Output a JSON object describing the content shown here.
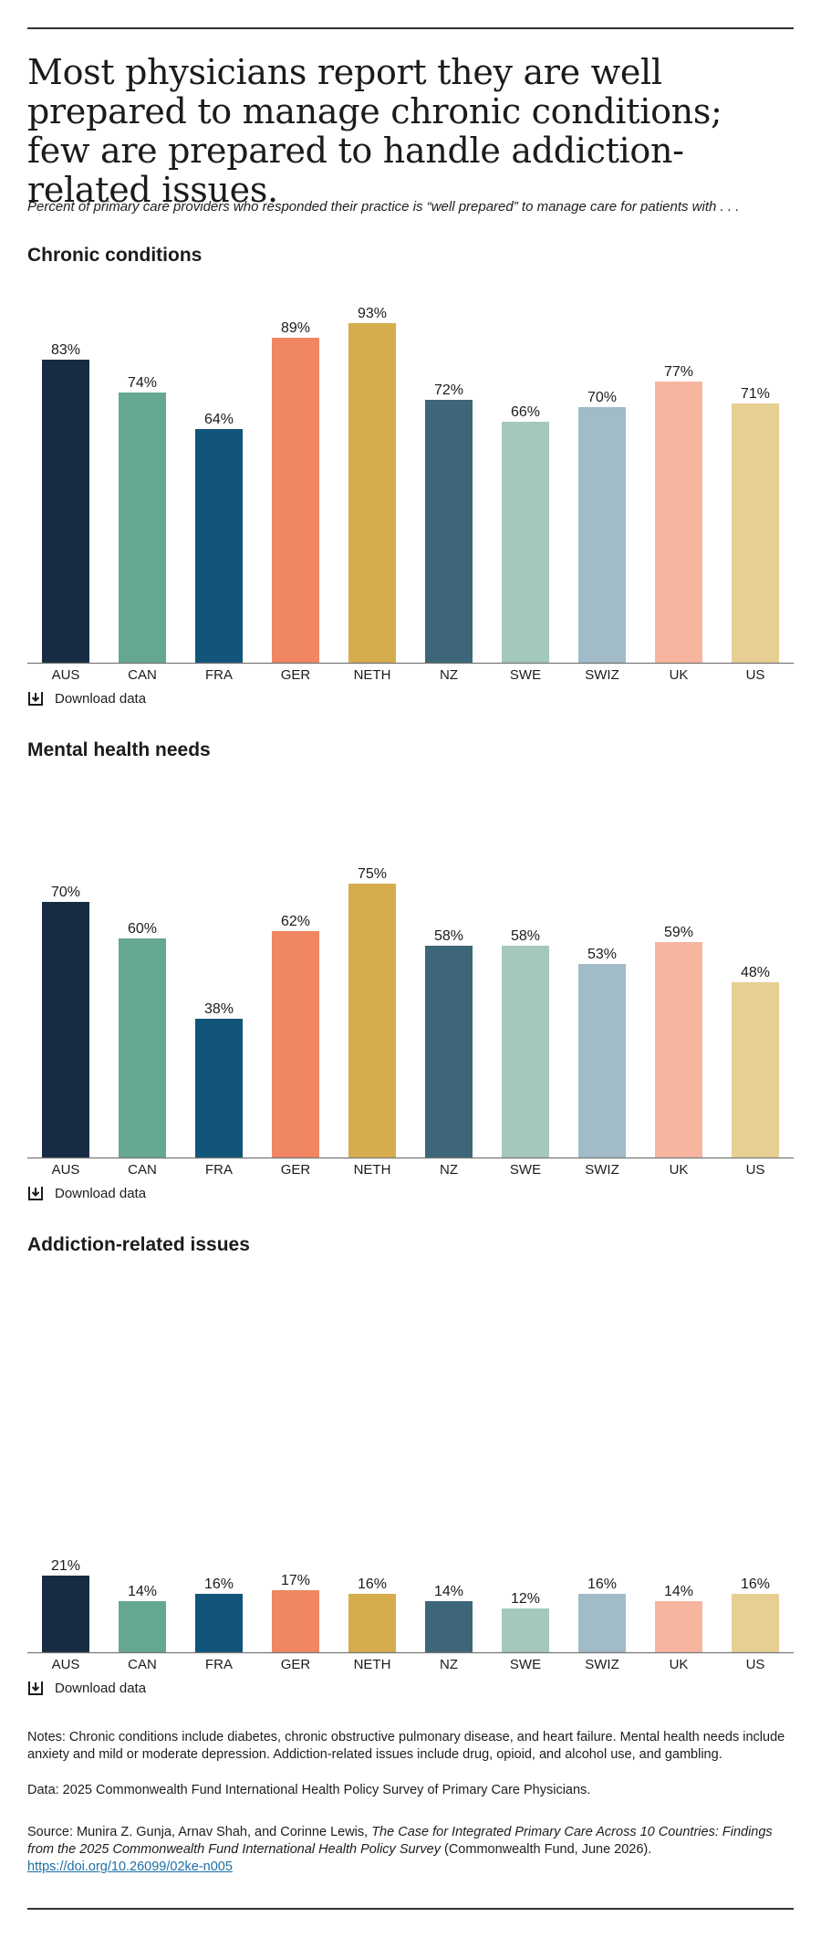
{
  "headline": "Most physicians report they are well prepared to manage chronic conditions; few are prepared to handle addiction-related issues.",
  "subtitle": "Percent of primary care providers who responded their practice is “well prepared” to manage care for patients with . . .",
  "colors": [
    "#172c42",
    "#66a792",
    "#11557a",
    "#f08762",
    "#d6ad4d",
    "#3d6679",
    "#a4c9bc",
    "#a1bbc8",
    "#f7b5a0",
    "#e7cf93"
  ],
  "download_label": "Download data",
  "chart_data": [
    {
      "type": "bar",
      "title": "Chronic conditions",
      "categories": [
        "AUS",
        "CAN",
        "FRA",
        "GER",
        "NETH",
        "NZ",
        "SWE",
        "SWIZ",
        "UK",
        "US"
      ],
      "values": [
        83,
        74,
        64,
        89,
        93,
        72,
        66,
        70,
        77,
        71
      ],
      "value_labels": [
        "83%",
        "74%",
        "64%",
        "89%",
        "93%",
        "72%",
        "66%",
        "70%",
        "77%",
        "71%"
      ],
      "ylim": [
        0,
        100
      ],
      "grid": false,
      "legend": "none"
    },
    {
      "type": "bar",
      "title": "Mental health needs",
      "categories": [
        "AUS",
        "CAN",
        "FRA",
        "GER",
        "NETH",
        "NZ",
        "SWE",
        "SWIZ",
        "UK",
        "US"
      ],
      "values": [
        70,
        60,
        38,
        62,
        75,
        58,
        58,
        53,
        59,
        48
      ],
      "value_labels": [
        "70%",
        "60%",
        "38%",
        "62%",
        "75%",
        "58%",
        "58%",
        "53%",
        "59%",
        "48%"
      ],
      "ylim": [
        0,
        100
      ],
      "grid": false,
      "legend": "none"
    },
    {
      "type": "bar",
      "title": "Addiction-related issues",
      "categories": [
        "AUS",
        "CAN",
        "FRA",
        "GER",
        "NETH",
        "NZ",
        "SWE",
        "SWIZ",
        "UK",
        "US"
      ],
      "values": [
        21,
        14,
        16,
        17,
        16,
        14,
        12,
        16,
        14,
        16
      ],
      "value_labels": [
        "21%",
        "14%",
        "16%",
        "17%",
        "16%",
        "14%",
        "12%",
        "16%",
        "14%",
        "16%"
      ],
      "ylim": [
        0,
        100
      ],
      "grid": false,
      "legend": "none"
    }
  ],
  "notes": {
    "notes_text": "Notes: Chronic conditions include diabetes, chronic obstructive pulmonary disease, and heart failure. Mental health needs include anxiety and mild or moderate depression. Addiction-related issues include drug, opioid, and alcohol use, and gambling.",
    "data_text": "Data: 2025 Commonwealth Fund International Health Policy Survey of Primary Care Physicians.",
    "source_prefix": "Source: Munira Z. Gunja, Arnav Shah, and Corinne Lewis, ",
    "source_title": "The Case for Integrated Primary Care Across 10 Countries: Findings from the 2025 Commonwealth Fund International Health Policy Survey",
    "source_suffix": " (Commonwealth Fund, June 2026).",
    "doi": "https://doi.org/10.26099/02ke-n005"
  }
}
